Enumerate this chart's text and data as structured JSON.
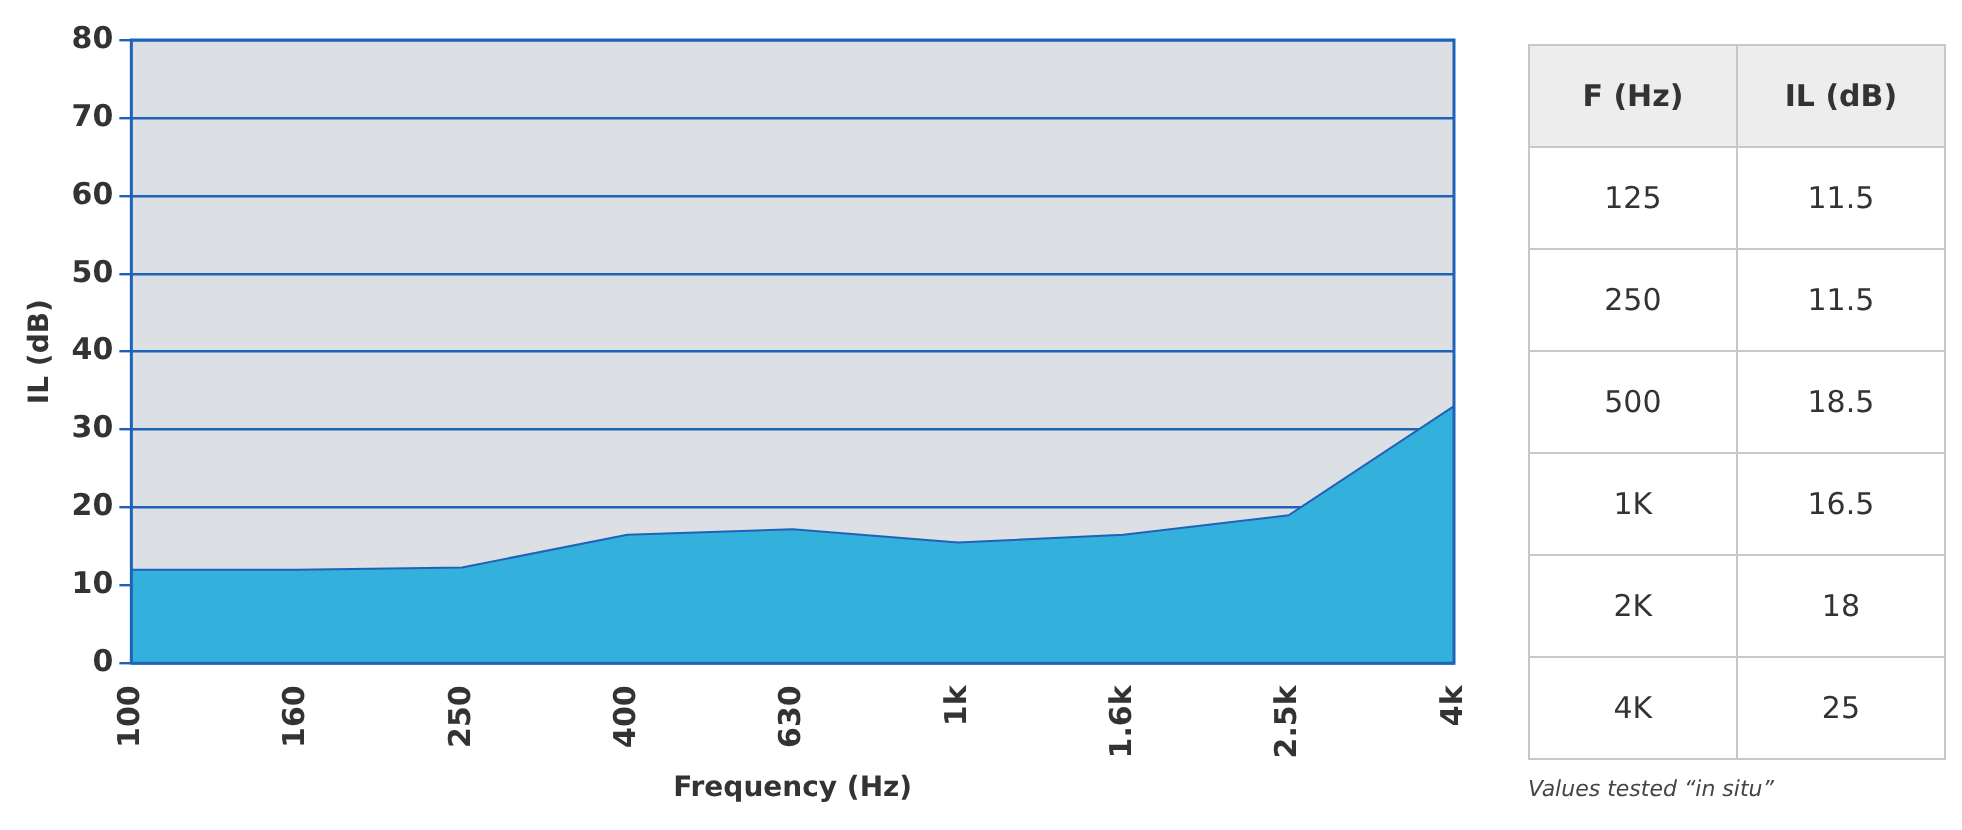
{
  "chart_data": {
    "type": "area",
    "xlabel": "Frequency (Hz)",
    "ylabel": "IL (dB)",
    "categories": [
      "100",
      "160",
      "250",
      "400",
      "630",
      "1k",
      "1.6k",
      "2.5k",
      "4k"
    ],
    "series": [
      {
        "color": "#33b1dc",
        "values": [
          12,
          12,
          12.3,
          16.5,
          17.2,
          15.5,
          16.5,
          19,
          33
        ]
      }
    ],
    "ylim": [
      0,
      80
    ],
    "yticks": [
      0,
      10,
      20,
      30,
      40,
      50,
      60,
      70,
      80
    ],
    "grid": "y",
    "legend": false,
    "annotations": [
      "F (Hz)",
      "IL (dB)",
      "125",
      "11.5",
      "250",
      "11.5",
      "500",
      "18.5",
      "1K",
      "16.5",
      "2K",
      "18",
      "4K",
      "25",
      "Values tested “in situ”"
    ]
  }
}
